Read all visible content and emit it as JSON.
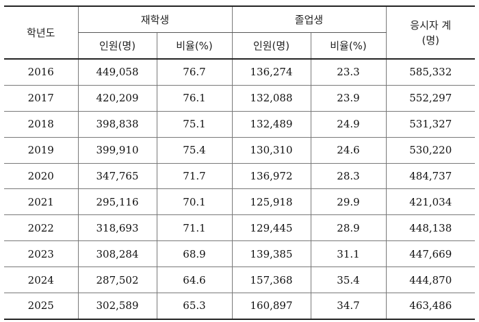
{
  "table": {
    "headers": {
      "year": "학년도",
      "current_group": "재학생",
      "graduate_group": "졸업생",
      "total_line1": "응시자 계",
      "total_line2": "(명)",
      "count": "인원(명)",
      "ratio": "비율(%)"
    },
    "rows": [
      {
        "year": "2016",
        "cur_n": "449,058",
        "cur_p": "76.7",
        "grad_n": "136,274",
        "grad_p": "23.3",
        "total": "585,332"
      },
      {
        "year": "2017",
        "cur_n": "420,209",
        "cur_p": "76.1",
        "grad_n": "132,088",
        "grad_p": "23.9",
        "total": "552,297"
      },
      {
        "year": "2018",
        "cur_n": "398,838",
        "cur_p": "75.1",
        "grad_n": "132,489",
        "grad_p": "24.9",
        "total": "531,327"
      },
      {
        "year": "2019",
        "cur_n": "399,910",
        "cur_p": "75.4",
        "grad_n": "130,310",
        "grad_p": "24.6",
        "total": "530,220"
      },
      {
        "year": "2020",
        "cur_n": "347,765",
        "cur_p": "71.7",
        "grad_n": "136,972",
        "grad_p": "28.3",
        "total": "484,737"
      },
      {
        "year": "2021",
        "cur_n": "295,116",
        "cur_p": "70.1",
        "grad_n": "125,918",
        "grad_p": "29.9",
        "total": "421,034"
      },
      {
        "year": "2022",
        "cur_n": "318,693",
        "cur_p": "71.1",
        "grad_n": "129,445",
        "grad_p": "28.9",
        "total": "448,138"
      },
      {
        "year": "2023",
        "cur_n": "308,284",
        "cur_p": "68.9",
        "grad_n": "139,385",
        "grad_p": "31.1",
        "total": "447,669"
      },
      {
        "year": "2024",
        "cur_n": "287,502",
        "cur_p": "64.6",
        "grad_n": "157,368",
        "grad_p": "35.4",
        "total": "444,870"
      },
      {
        "year": "2025",
        "cur_n": "302,589",
        "cur_p": "65.3",
        "grad_n": "160,897",
        "grad_p": "34.7",
        "total": "463,486"
      }
    ]
  }
}
